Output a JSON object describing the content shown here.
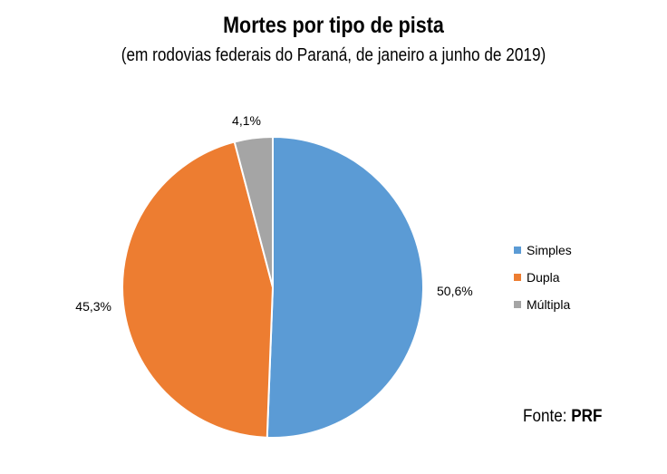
{
  "chart_data": {
    "type": "pie",
    "title": "Mortes por tipo de pista",
    "subtitle": "(em rodovias federais do Paraná, de janeiro a junho de 2019)",
    "categories": [
      "Simples",
      "Dupla",
      "Múltipla"
    ],
    "values": [
      50.6,
      45.3,
      4.1
    ],
    "value_labels": [
      "50,6%",
      "45,3%",
      "4,1%"
    ],
    "colors": [
      "#5B9BD5",
      "#ED7D31",
      "#A5A5A5"
    ],
    "legend_position": "right"
  },
  "source": {
    "label": "Fonte:",
    "value": "PRF"
  }
}
